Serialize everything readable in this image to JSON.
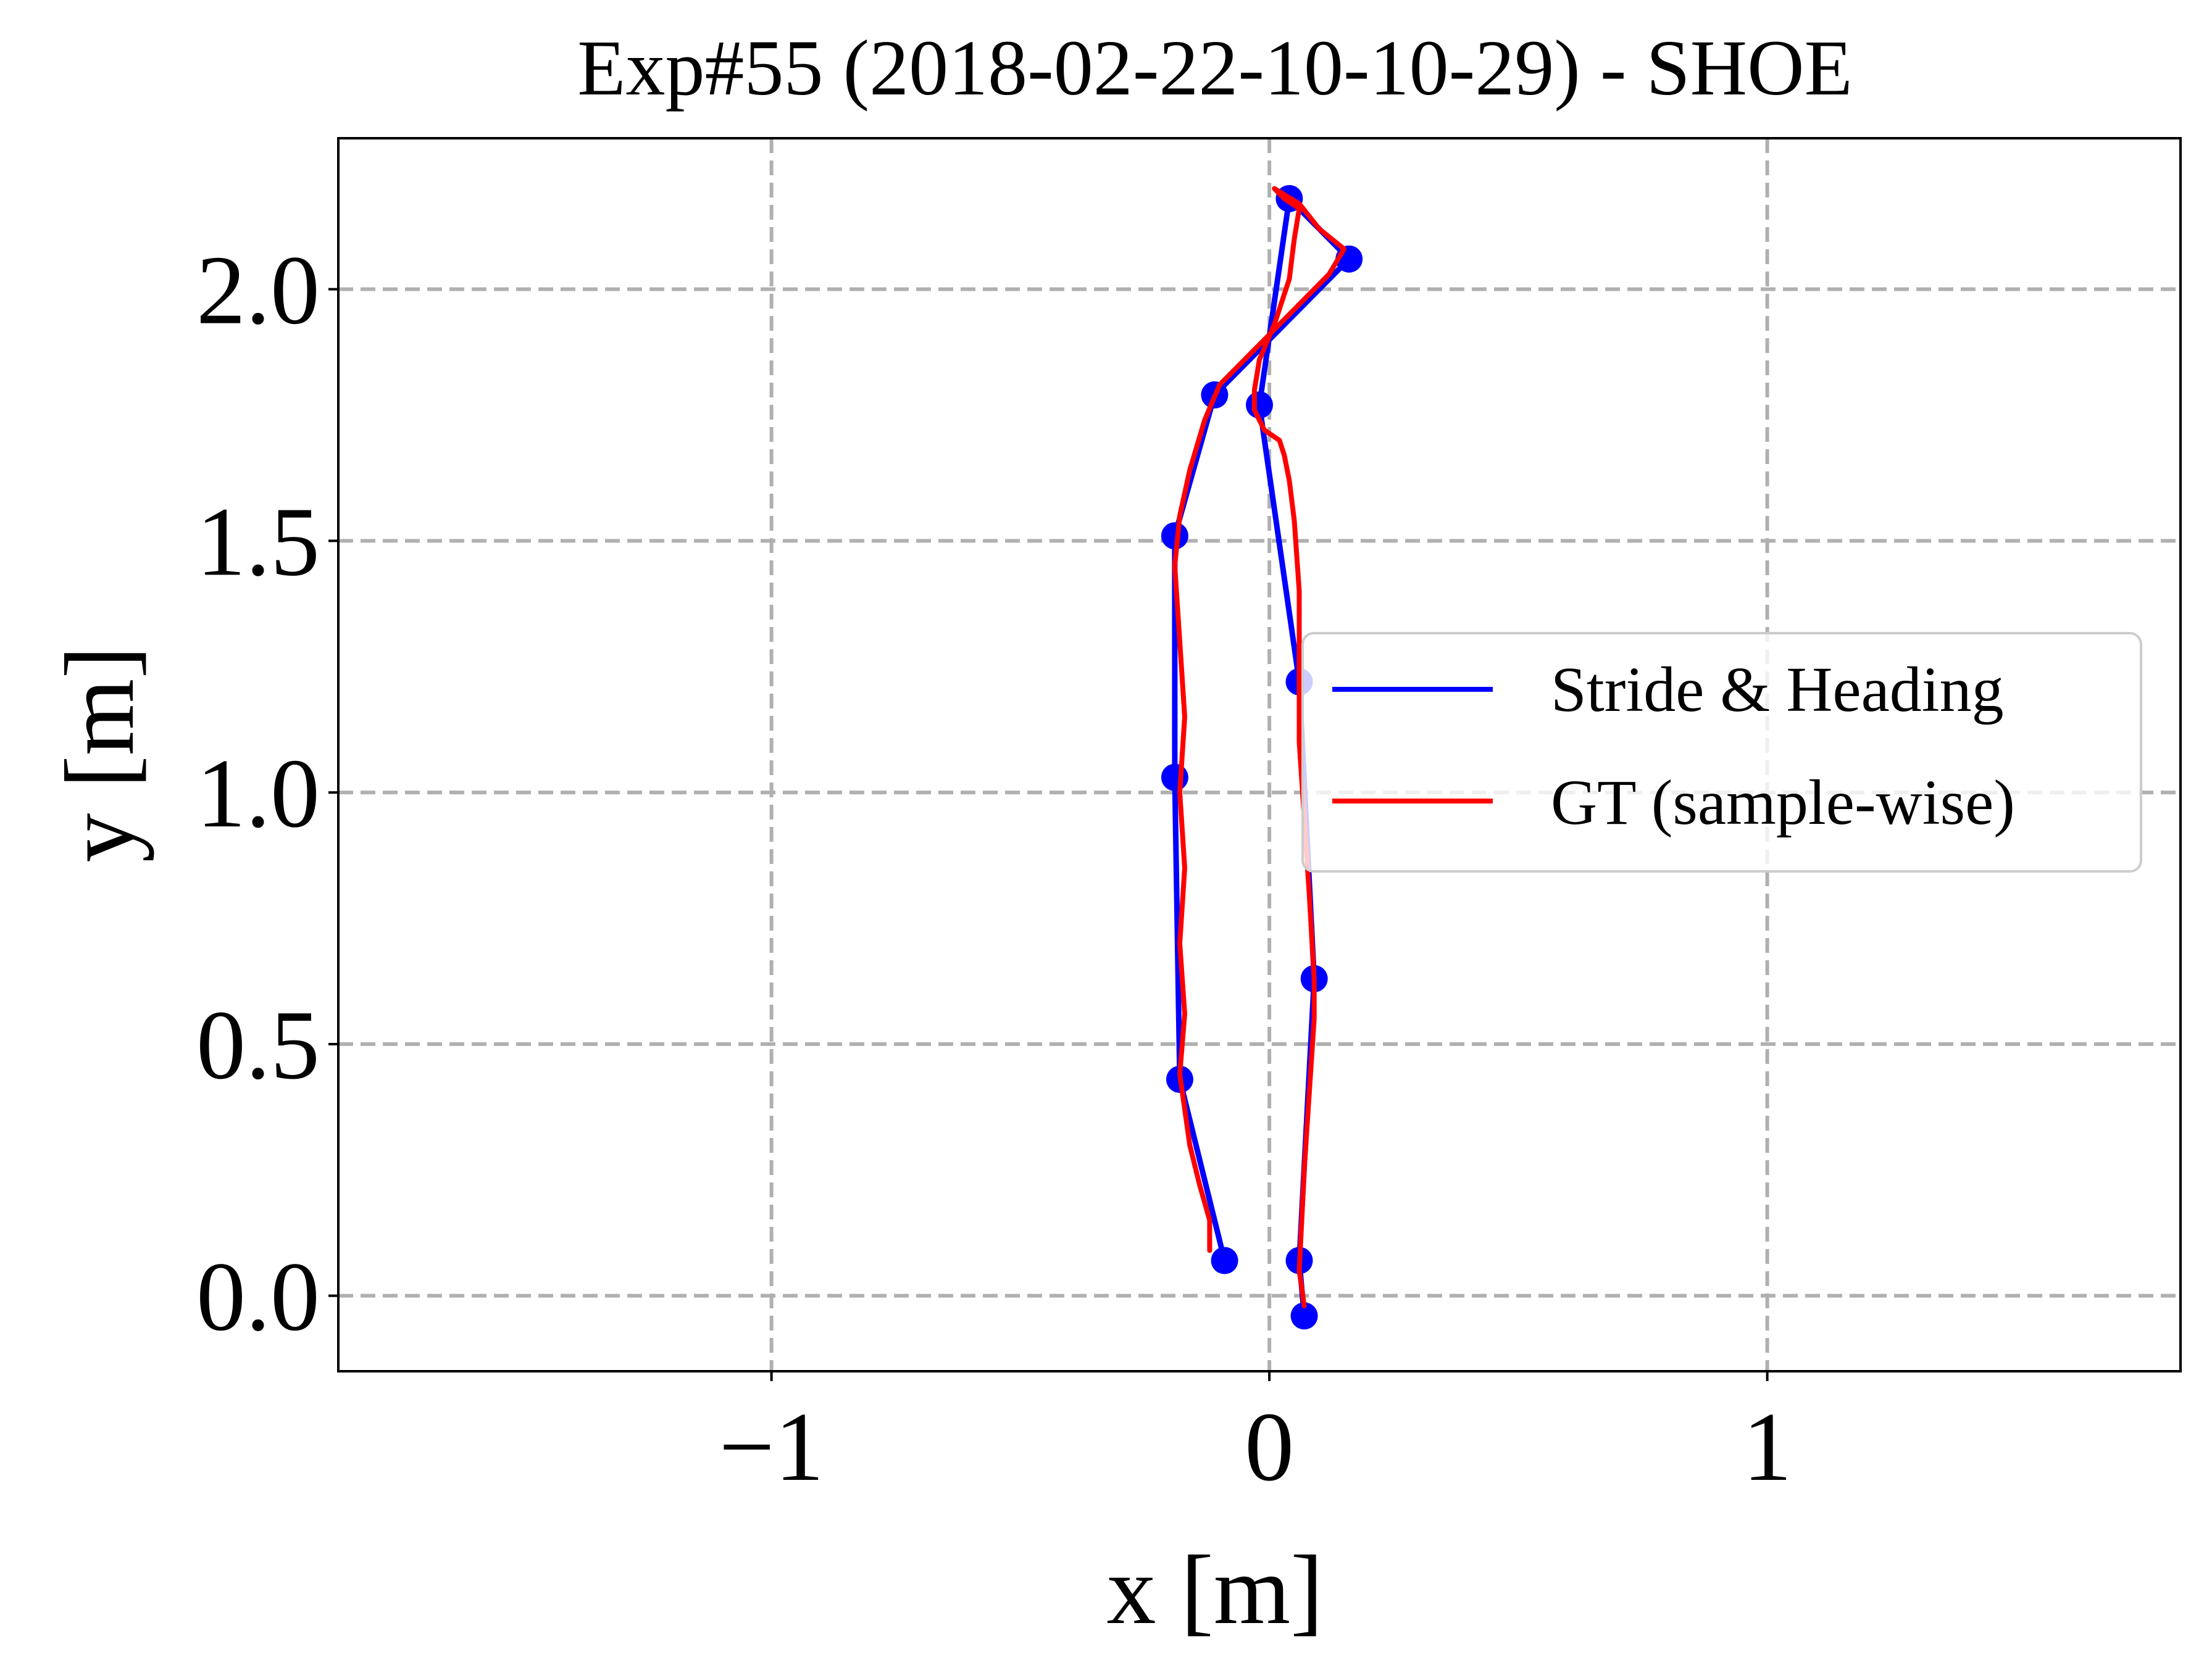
{
  "chart_data": {
    "type": "line",
    "title": "Exp#55 (2018-02-22-10-10-29) - SHOE",
    "xlabel": "x [m]",
    "ylabel": "y [m]",
    "xlim": [
      -1.87,
      1.83
    ],
    "ylim": [
      -0.15,
      2.3
    ],
    "x_ticks": [
      -1,
      0,
      1
    ],
    "x_tick_labels": [
      "−1",
      "0",
      "1"
    ],
    "y_ticks": [
      0.0,
      0.5,
      1.0,
      1.5,
      2.0
    ],
    "y_tick_labels": [
      "0.0",
      "0.5",
      "1.0",
      "1.5",
      "2.0"
    ],
    "grid": true,
    "legend_position": "center-right",
    "series": [
      {
        "name": "Stride & Heading",
        "color": "#0000ff",
        "markers": true,
        "x": [
          0.07,
          0.06,
          0.09,
          0.06,
          -0.02,
          0.04,
          0.16,
          -0.11,
          -0.19,
          -0.19,
          -0.18,
          -0.09
        ],
        "y": [
          -0.04,
          0.07,
          0.63,
          1.22,
          1.77,
          2.18,
          2.06,
          1.79,
          1.51,
          1.03,
          0.43,
          0.07
        ]
      },
      {
        "name": "GT (sample-wise)",
        "color": "#ff0000",
        "markers": false,
        "x": [
          0.07,
          0.06,
          0.07,
          0.08,
          0.09,
          0.09,
          0.08,
          0.07,
          0.06,
          0.06,
          0.06,
          0.05,
          0.04,
          0.03,
          0.02,
          -0.01,
          -0.03,
          -0.03,
          -0.02,
          0.01,
          0.04,
          0.05,
          0.06,
          0.03,
          0.01,
          0.06,
          0.1,
          0.15,
          0.12,
          0.05,
          -0.04,
          -0.1,
          -0.13,
          -0.16,
          -0.18,
          -0.19,
          -0.18,
          -0.17,
          -0.18,
          -0.17,
          -0.18,
          -0.17,
          -0.18,
          -0.16,
          -0.14,
          -0.12,
          -0.12
        ],
        "y": [
          -0.02,
          0.05,
          0.25,
          0.4,
          0.55,
          0.63,
          0.8,
          0.95,
          1.1,
          1.25,
          1.4,
          1.54,
          1.62,
          1.67,
          1.7,
          1.72,
          1.76,
          1.8,
          1.86,
          1.93,
          2.02,
          2.1,
          2.16,
          2.18,
          2.2,
          2.17,
          2.12,
          2.08,
          2.03,
          1.96,
          1.87,
          1.81,
          1.74,
          1.64,
          1.55,
          1.45,
          1.3,
          1.15,
          1.0,
          0.85,
          0.7,
          0.56,
          0.44,
          0.3,
          0.22,
          0.15,
          0.09
        ]
      }
    ]
  }
}
